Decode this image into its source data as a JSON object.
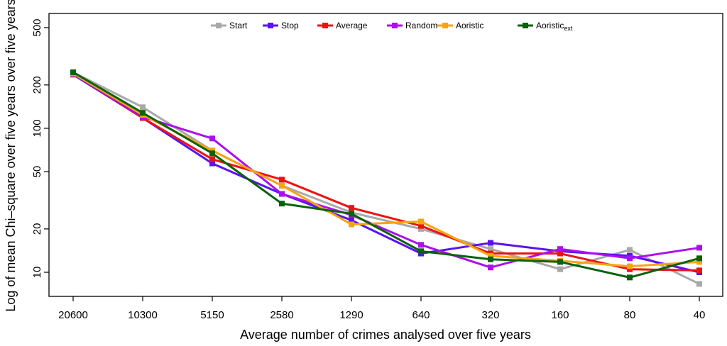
{
  "chart_data": {
    "type": "line",
    "title": "",
    "xlabel": "Average number of crimes analysed over five years",
    "ylabel": "Log of mean Chi–square over five years over five years",
    "yscale": "log",
    "ylim": [
      8,
      600
    ],
    "yticks": [
      10,
      20,
      50,
      100,
      200,
      500
    ],
    "ytick_labels": [
      "10",
      "20",
      "50",
      "100",
      "200",
      "500"
    ],
    "categories": [
      "20600",
      "10300",
      "5150",
      "2580",
      "1290",
      "640",
      "320",
      "160",
      "80",
      "40"
    ],
    "legend_position": "top",
    "series": [
      {
        "name": "Start",
        "sub": "",
        "color": "#a9a9a9",
        "values": [
          245,
          140,
          70,
          40,
          26,
          20,
          14.5,
          10.5,
          14.3,
          8.3
        ]
      },
      {
        "name": "Stop",
        "sub": "",
        "color": "#5a12f0",
        "values": [
          236,
          118,
          57,
          35,
          23,
          13.5,
          16,
          14,
          13,
          10
        ]
      },
      {
        "name": "Average",
        "sub": "",
        "color": "#ee1111",
        "values": [
          240,
          118,
          61,
          44,
          28,
          21,
          13.5,
          13.5,
          10.5,
          10.3
        ]
      },
      {
        "name": "Random",
        "sub": "",
        "color": "#aa10ee",
        "values": [
          240,
          120,
          85,
          35,
          25,
          15.5,
          10.8,
          14.5,
          12.5,
          14.8
        ]
      },
      {
        "name": "Aoristic",
        "sub": "",
        "color": "#f5a511",
        "values": [
          240,
          124,
          70,
          40,
          21.5,
          22.5,
          13,
          12,
          11,
          11.8
        ]
      },
      {
        "name": "Aoristic",
        "sub": "ext",
        "color": "#0a620a",
        "values": [
          245,
          128,
          67,
          30,
          25.5,
          14,
          12.3,
          11.8,
          9.2,
          12.5
        ]
      }
    ]
  }
}
